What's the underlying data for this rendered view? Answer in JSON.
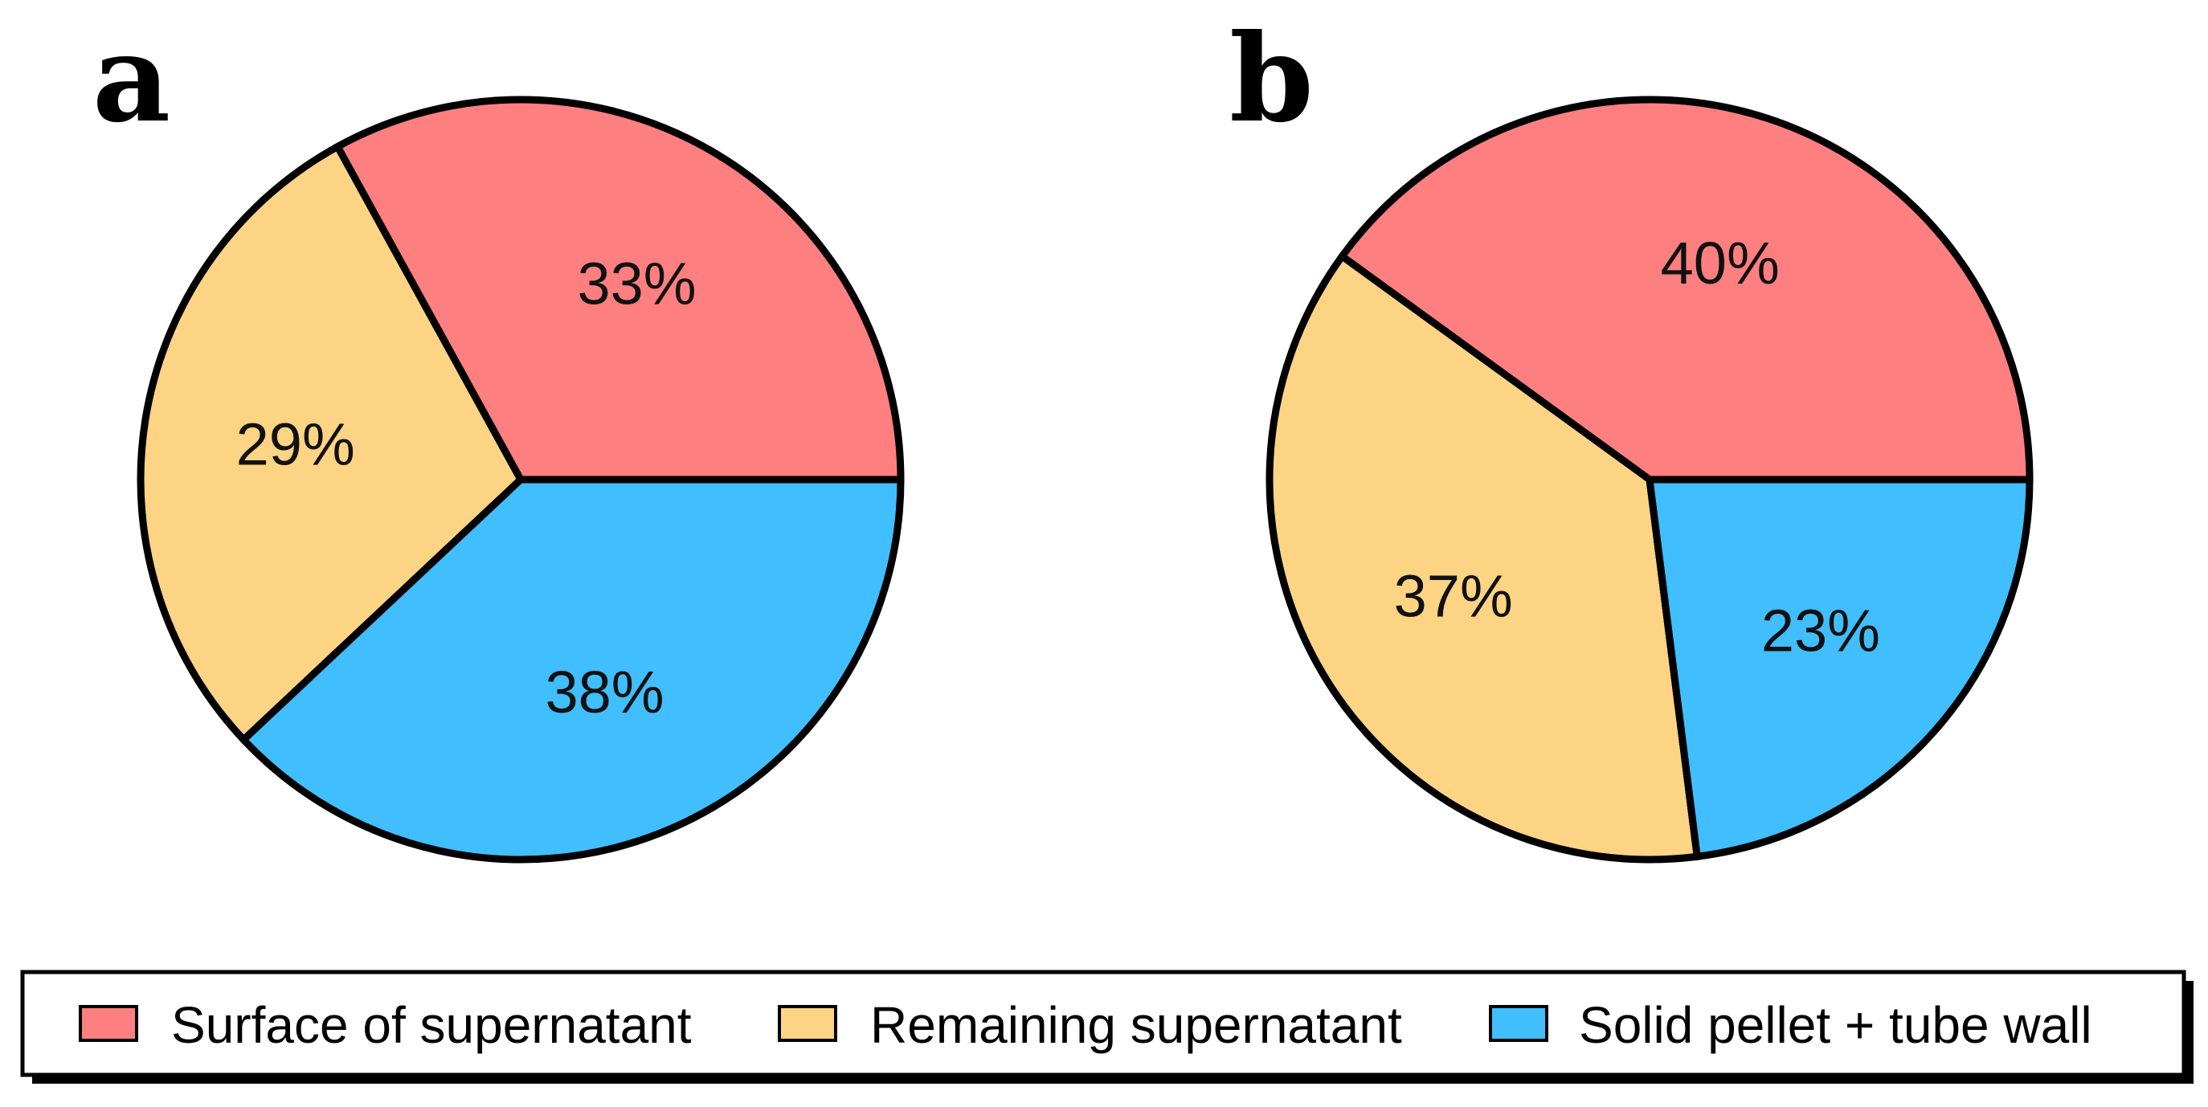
{
  "chart_data": [
    {
      "type": "pie",
      "panel_label": "a",
      "slices": [
        {
          "category": "Surface of supernatant",
          "value": 33,
          "label": "33%"
        },
        {
          "category": "Remaining supernatant",
          "value": 29,
          "label": "29%"
        },
        {
          "category": "Solid pellet + tube wall",
          "value": 38,
          "label": "38%"
        }
      ]
    },
    {
      "type": "pie",
      "panel_label": "b",
      "slices": [
        {
          "category": "Surface of supernatant",
          "value": 40,
          "label": "40%"
        },
        {
          "category": "Remaining supernatant",
          "value": 37,
          "label": "37%"
        },
        {
          "category": "Solid pellet + tube wall",
          "value": 23,
          "label": "23%"
        }
      ]
    }
  ],
  "legend": {
    "placement": "bottom",
    "entries": [
      {
        "label": "Surface of supernatant",
        "color": "#fe7f7f"
      },
      {
        "label": "Remaining supernatant",
        "color": "#fcd484"
      },
      {
        "label": "Solid pellet + tube wall",
        "color": "#40befe"
      }
    ]
  },
  "colors": {
    "outline": "#000000",
    "background": "#ffffff"
  }
}
